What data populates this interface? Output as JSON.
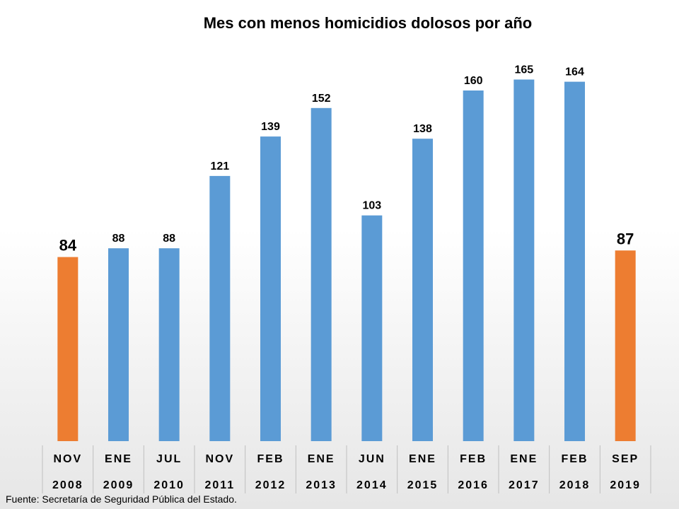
{
  "chart_data": {
    "type": "bar",
    "title": "Mes con menos homicidios dolosos por año",
    "categories": [
      {
        "month": "NOV",
        "year": "2008"
      },
      {
        "month": "ENE",
        "year": "2009"
      },
      {
        "month": "JUL",
        "year": "2010"
      },
      {
        "month": "NOV",
        "year": "2011"
      },
      {
        "month": "FEB",
        "year": "2012"
      },
      {
        "month": "ENE",
        "year": "2013"
      },
      {
        "month": "JUN",
        "year": "2014"
      },
      {
        "month": "ENE",
        "year": "2015"
      },
      {
        "month": "FEB",
        "year": "2016"
      },
      {
        "month": "ENE",
        "year": "2017"
      },
      {
        "month": "FEB",
        "year": "2018"
      },
      {
        "month": "SEP",
        "year": "2019"
      }
    ],
    "values": [
      84,
      88,
      88,
      121,
      139,
      152,
      103,
      138,
      160,
      165,
      164,
      87
    ],
    "data_labels": [
      "84",
      "88",
      "88",
      "121",
      "139",
      "152",
      "103",
      "138",
      "160",
      "165",
      "164",
      "87"
    ],
    "highlighted": [
      true,
      false,
      false,
      false,
      false,
      false,
      false,
      false,
      false,
      false,
      false,
      true
    ],
    "ylim": [
      0,
      185
    ],
    "grid": false,
    "legend": "none",
    "colors": {
      "bar": "#5b9bd5",
      "highlight": "#ed7d31",
      "separator": "#bfbfbf"
    },
    "source": "Fuente: Secretaría de Seguridad Pública del Estado."
  }
}
